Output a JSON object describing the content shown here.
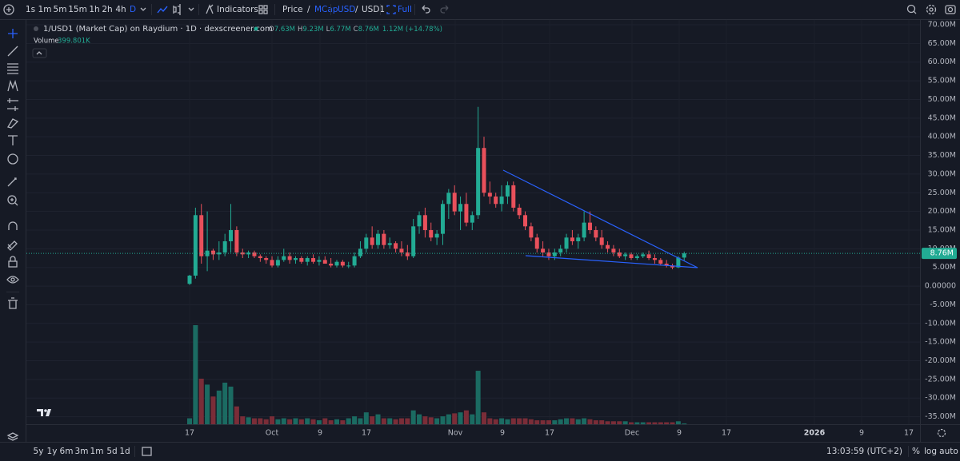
{
  "toolbar": {
    "intervals": [
      "1s",
      "1m",
      "5m",
      "15m",
      "1h",
      "2h",
      "4h",
      "D"
    ],
    "indicators": "Indicators",
    "price": "Price",
    "slash": "/",
    "mcap": "MCap",
    "usd": "USD",
    "usd1": "USD1",
    "full": "Full"
  },
  "legend": {
    "pair": "1/USD1 (Market Cap) on Raydium · 1D · dexscreener.com",
    "ohlc": [
      [
        "O",
        "7.63M"
      ],
      [
        "H",
        "9.23M"
      ],
      [
        "L",
        "6.77M"
      ],
      [
        "C",
        "8.76M"
      ]
    ],
    "change": "1.12M (+14.78%)",
    "volume": "Volume",
    "volume_value": "399.801K"
  },
  "chart_data": {
    "type": "candlestick",
    "open": [
      600000.0,
      2800000.0,
      19000000.0,
      8000000.0,
      9500000.0,
      8500000.0,
      9000000.0,
      12000000.0,
      15000000.0,
      9000000.0,
      8500000.0,
      9000000.0,
      8000000.0,
      7500000.0,
      7000000.0,
      5500000.0,
      7000000.0,
      8000000.0,
      7000000.0,
      7500000.0,
      6500000.0,
      7500000.0,
      6500000.0,
      7000000.0,
      6000000.0,
      5500000.0,
      6500000.0,
      5500000.0,
      5500000.0,
      8000000.0,
      10000000.0,
      13000000.0,
      11000000.0,
      14000000.0,
      11000000.0,
      11500000.0,
      10000000.0,
      9000000.0,
      8000000.0,
      16000000.0,
      19000000.0,
      15000000.0,
      13000000.0,
      14000000.0,
      22000000.0,
      25000000.0,
      20000000.0,
      22000000.0,
      17000000.0,
      19000000.0,
      37000000.0,
      25000000.0,
      24000000.0,
      22000000.0,
      24000000.0,
      27000000.0,
      21000000.0,
      19000000.0,
      16000000.0,
      13000000.0,
      10000000.0,
      9000000.0,
      8000000.0,
      9000000.0,
      10000000.0,
      13000000.0,
      12000000.0,
      13000000.0,
      17000000.0,
      15000000.0,
      13000000.0,
      11000000.0,
      10000000.0,
      9000000.0,
      8000000.0,
      8500000.0,
      7500000.0,
      8000000.0,
      8500000.0,
      7500000.0,
      7000000.0,
      6000000.0,
      5500000.0,
      5000000.0,
      7630000.0
    ],
    "high": [
      3000000.0,
      21000000.0,
      22000000.0,
      20000000.0,
      10000000.0,
      12000000.0,
      14000000.0,
      22000000.0,
      16000000.0,
      10000000.0,
      9500000.0,
      9500000.0,
      8500000.0,
      8000000.0,
      8000000.0,
      8000000.0,
      10000000.0,
      9000000.0,
      8000000.0,
      8000000.0,
      8000000.0,
      8500000.0,
      8000000.0,
      8000000.0,
      7500000.0,
      7000000.0,
      7000000.0,
      6500000.0,
      9000000.0,
      12000000.0,
      14000000.0,
      16000000.0,
      15000000.0,
      15000000.0,
      13000000.0,
      12000000.0,
      12000000.0,
      11000000.0,
      18000000.0,
      20000000.0,
      21000000.0,
      17000000.0,
      15000000.0,
      23000000.0,
      26000000.0,
      27000000.0,
      24000000.0,
      25000000.0,
      20000000.0,
      48000000.0,
      40000000.0,
      28000000.0,
      25000000.0,
      27000000.0,
      28000000.0,
      28000000.0,
      22000000.0,
      20000000.0,
      17000000.0,
      14000000.0,
      12000000.0,
      10000000.0,
      10000000.0,
      11000000.0,
      14000000.0,
      15000000.0,
      14000000.0,
      20000000.0,
      20000000.0,
      16000000.0,
      15000000.0,
      12000000.0,
      11000000.0,
      10000000.0,
      9000000.0,
      9000000.0,
      8500000.0,
      9000000.0,
      9500000.0,
      8500000.0,
      7500000.0,
      7000000.0,
      6000000.0,
      8000000.0,
      9230000.0
    ],
    "low": [
      300000.0,
      2000000.0,
      6000000.0,
      4000000.0,
      7000000.0,
      7000000.0,
      8000000.0,
      9000000.0,
      8000000.0,
      7500000.0,
      7500000.0,
      7500000.0,
      6500000.0,
      6000000.0,
      5000000.0,
      5000000.0,
      6500000.0,
      6000000.0,
      6000000.0,
      6000000.0,
      5500000.0,
      6000000.0,
      5500000.0,
      6000000.0,
      5000000.0,
      5000000.0,
      5000000.0,
      4800000.0,
      5000000.0,
      7500000.0,
      9000000.0,
      10000000.0,
      10000000.0,
      10000000.0,
      10000000.0,
      9000000.0,
      8000000.0,
      7000000.0,
      7500000.0,
      14000000.0,
      13000000.0,
      12000000.0,
      11000000.0,
      11000000.0,
      18000000.0,
      19000000.0,
      15000000.0,
      16000000.0,
      15000000.0,
      18000000.0,
      24000000.0,
      22000000.0,
      21000000.0,
      20000000.0,
      22000000.0,
      20000000.0,
      18000000.0,
      15000000.0,
      12000000.0,
      9000000.0,
      8000000.0,
      7000000.0,
      7000000.0,
      8000000.0,
      9000000.0,
      11000000.0,
      10000000.0,
      12000000.0,
      14000000.0,
      12000000.0,
      10000000.0,
      9000000.0,
      8000000.0,
      7500000.0,
      7000000.0,
      7000000.0,
      7000000.0,
      7500000.0,
      7000000.0,
      6000000.0,
      5500000.0,
      5000000.0,
      4500000.0,
      4800000.0,
      6770000.0
    ],
    "close": [
      2800000.0,
      19000000.0,
      8000000.0,
      9500000.0,
      8500000.0,
      9000000.0,
      12000000.0,
      15000000.0,
      9000000.0,
      8500000.0,
      9000000.0,
      8000000.0,
      7500000.0,
      7000000.0,
      5500000.0,
      7000000.0,
      8000000.0,
      7000000.0,
      7500000.0,
      6500000.0,
      7500000.0,
      6500000.0,
      7000000.0,
      6000000.0,
      5500000.0,
      6500000.0,
      5500000.0,
      5500000.0,
      8000000.0,
      10000000.0,
      13000000.0,
      11000000.0,
      14000000.0,
      11000000.0,
      11500000.0,
      10000000.0,
      9000000.0,
      8000000.0,
      16000000.0,
      19000000.0,
      15000000.0,
      13000000.0,
      14000000.0,
      22000000.0,
      25000000.0,
      20000000.0,
      22000000.0,
      17000000.0,
      19000000.0,
      37000000.0,
      25000000.0,
      24000000.0,
      22000000.0,
      24000000.0,
      27000000.0,
      21000000.0,
      19000000.0,
      16000000.0,
      13000000.0,
      10000000.0,
      9000000.0,
      8000000.0,
      9000000.0,
      10000000.0,
      13000000.0,
      12000000.0,
      13000000.0,
      17000000.0,
      15000000.0,
      13000000.0,
      11000000.0,
      10000000.0,
      9000000.0,
      8000000.0,
      8500000.0,
      7500000.0,
      8000000.0,
      8500000.0,
      7500000.0,
      7000000.0,
      6000000.0,
      5500000.0,
      5000000.0,
      7630000.0,
      8760000.0
    ],
    "volume": [
      3000000.0,
      50000000.0,
      23000000.0,
      20000000.0,
      14000000.0,
      17000000.0,
      21000000.0,
      19000000.0,
      9000000.0,
      4000000.0,
      3500000.0,
      3000000.0,
      3000000.0,
      2500000.0,
      4000000.0,
      2500000.0,
      3000000.0,
      2500000.0,
      3000000.0,
      2500000.0,
      3000000.0,
      2500000.0,
      2000000.0,
      3000000.0,
      2000000.0,
      2500000.0,
      2000000.0,
      3000000.0,
      4000000.0,
      3000000.0,
      6000000.0,
      4000000.0,
      5000000.0,
      3000000.0,
      3000000.0,
      2500000.0,
      3000000.0,
      3000000.0,
      7000000.0,
      5000000.0,
      4000000.0,
      3500000.0,
      3000000.0,
      4000000.0,
      5000000.0,
      5500000.0,
      6000000.0,
      7000000.0,
      5000000.0,
      27000000.0,
      6000000.0,
      3000000.0,
      2500000.0,
      3000000.0,
      2500000.0,
      3000000.0,
      3000000.0,
      3000000.0,
      2500000.0,
      2000000.0,
      2000000.0,
      2000000.0,
      2000000.0,
      2500000.0,
      3000000.0,
      3000000.0,
      2500000.0,
      3000000.0,
      2500000.0,
      2000000.0,
      2000000.0,
      1500000.0,
      1500000.0,
      1500000.0,
      1500000.0,
      1000000.0,
      1000000.0,
      1000000.0,
      1000000.0,
      1000000.0,
      1000000.0,
      1000000.0,
      1000000.0,
      1500000.0,
      399801
    ],
    "ylim": [
      -36800000.0,
      71500000.0
    ],
    "yticks": [
      {
        "value": 70000000,
        "label": "70.00M"
      },
      {
        "value": 65000000,
        "label": "65.00M"
      },
      {
        "value": 60000000,
        "label": "60.00M"
      },
      {
        "value": 55000000,
        "label": "55.00M"
      },
      {
        "value": 50000000,
        "label": "50.00M"
      },
      {
        "value": 45000000,
        "label": "45.00M"
      },
      {
        "value": 40000000,
        "label": "40.00M"
      },
      {
        "value": 35000000,
        "label": "35.00M"
      },
      {
        "value": 30000000,
        "label": "30.00M"
      },
      {
        "value": 25000000,
        "label": "25.00M"
      },
      {
        "value": 20000000,
        "label": "20.00M"
      },
      {
        "value": 15000000,
        "label": "15.00M"
      },
      {
        "value": 10000000,
        "label": "10.00M"
      },
      {
        "value": 5000000,
        "label": "5.00M"
      },
      {
        "value": 0,
        "label": "0.00000"
      },
      {
        "value": -5000000,
        "label": "-5.00M"
      },
      {
        "value": -10000000,
        "label": "-10.00M"
      },
      {
        "value": -15000000,
        "label": "-15.00M"
      },
      {
        "value": -20000000,
        "label": "-20.00M"
      },
      {
        "value": -25000000,
        "label": "-25.00M"
      },
      {
        "value": -30000000,
        "label": "-30.00M"
      },
      {
        "value": -35000000,
        "label": "-35.00M"
      }
    ],
    "last_price": {
      "value": 8760000,
      "label": "8.76M"
    },
    "time_labels": [
      "17",
      "Oct",
      "9",
      "17",
      "Nov",
      "9",
      "17",
      "Dec",
      "9",
      "17",
      "2026",
      "9",
      "17"
    ],
    "up_color": "#22ab94",
    "down_color": "#e9505b",
    "up_volume_color": "#1b6b62",
    "down_volume_color": "#7a2d38"
  },
  "bottom_bar": {
    "ranges": [
      "5y",
      "1y",
      "6m",
      "3m",
      "1m",
      "5d",
      "1d"
    ],
    "clock": "13:03:59 (UTC+2)",
    "percent": "%",
    "log": "log",
    "auto": "auto"
  }
}
